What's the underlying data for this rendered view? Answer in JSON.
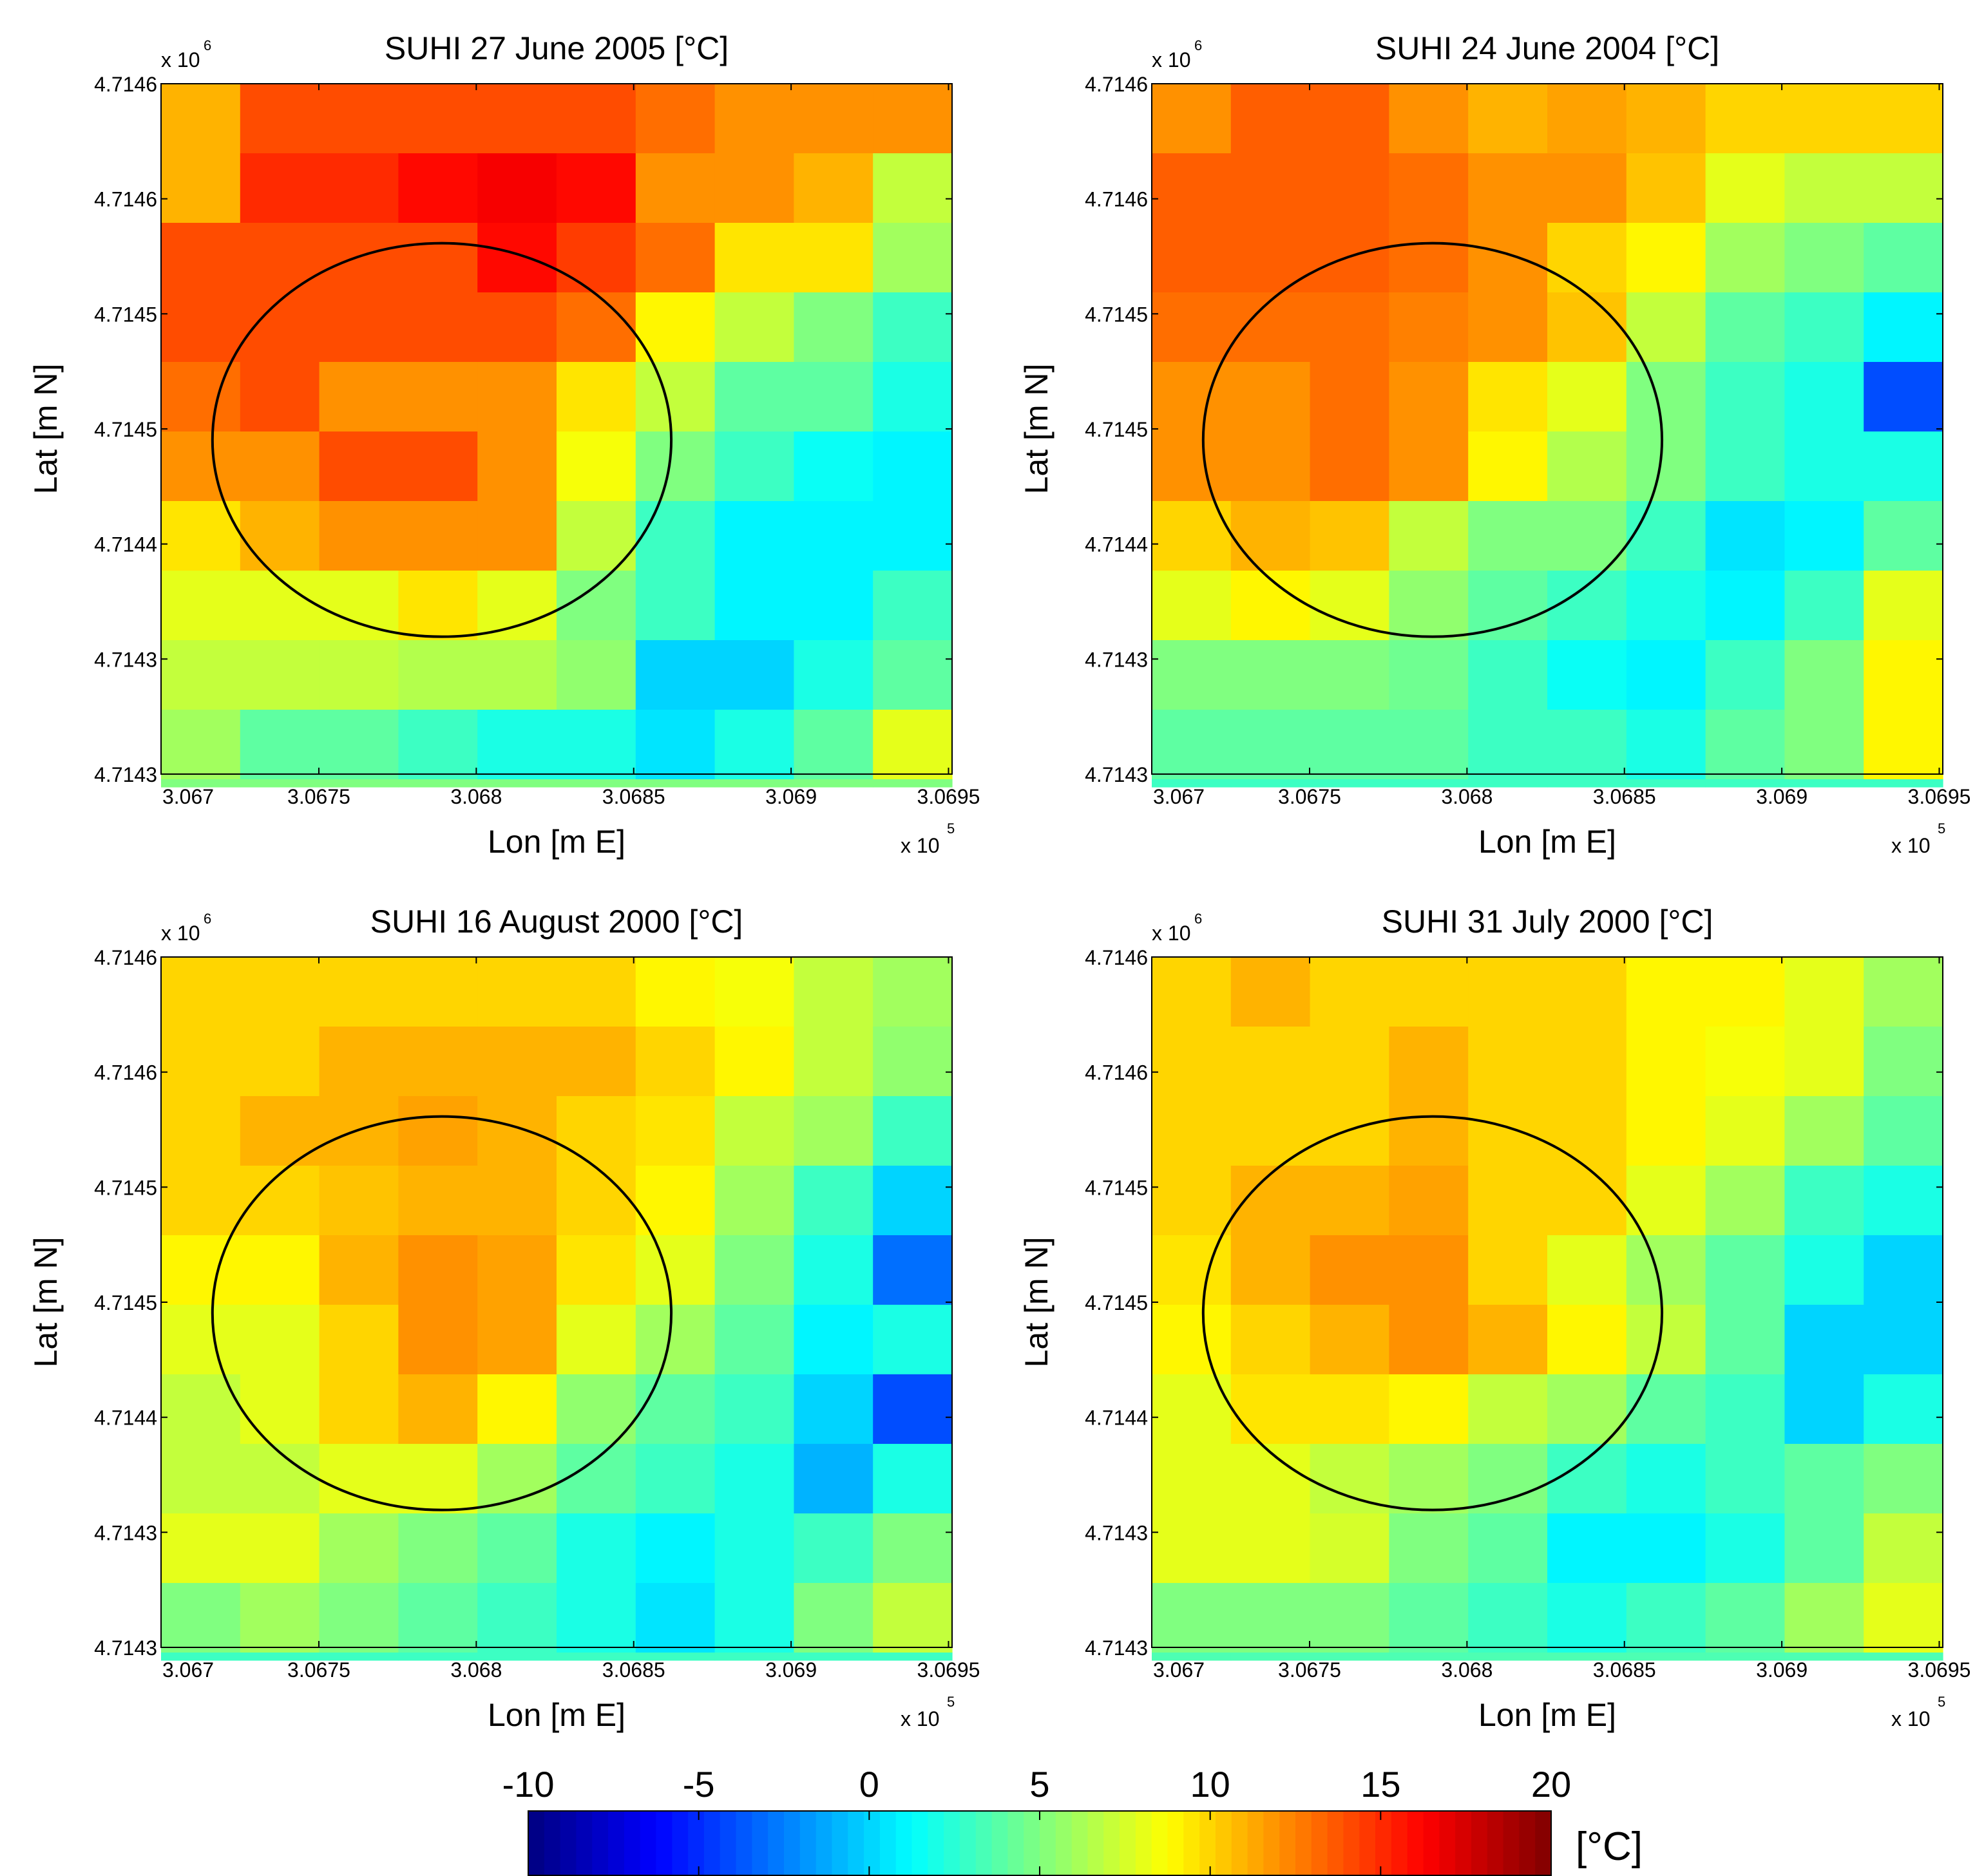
{
  "chart_data": {
    "type": "heatmap",
    "colorbar": {
      "min": -10,
      "max": 20,
      "ticks": [
        -10,
        -5,
        0,
        5,
        10,
        15,
        20
      ],
      "tick_labels": [
        "-10",
        "-5",
        "0",
        "5",
        "10",
        "15",
        "20"
      ],
      "unit_label": "[°C]",
      "colormap": "jet"
    },
    "panels": [
      {
        "title": "SUHI 27 June 2005 [°C]",
        "xlabel": "Lon [m E]",
        "ylabel": "Lat [m N]",
        "x_multiplier": "x 10",
        "x_multiplier_exp": "5",
        "y_multiplier": "x 10",
        "y_multiplier_exp": "6",
        "xtick_labels": [
          "3.067",
          "3.0675",
          "3.068",
          "3.0685",
          "3.069",
          "3.0695"
        ],
        "ytick_labels": [
          "4.7146",
          "4.7146",
          "4.7145",
          "4.7145",
          "4.7144",
          "4.7143",
          "4.7143"
        ],
        "grid_values": [
          [
            11,
            14,
            14,
            14,
            14,
            14,
            13,
            12,
            12,
            12
          ],
          [
            11,
            15,
            15,
            16,
            16.5,
            16,
            12,
            12,
            11,
            7
          ],
          [
            14,
            14,
            14,
            14,
            16,
            14.5,
            13,
            9.5,
            9.5,
            6
          ],
          [
            14,
            14,
            14,
            14,
            14,
            13,
            9,
            7,
            5,
            3
          ],
          [
            13,
            14,
            12,
            12,
            12,
            9.5,
            7,
            4,
            4,
            2
          ],
          [
            12,
            12,
            14,
            14,
            12,
            8.5,
            5,
            3,
            1.5,
            1
          ],
          [
            9.5,
            11,
            12,
            12,
            12,
            7,
            3,
            1,
            1,
            1
          ],
          [
            8,
            8,
            8,
            9.5,
            8,
            5,
            3,
            1,
            1,
            3
          ],
          [
            7,
            7,
            7,
            6.5,
            6.5,
            5.5,
            0,
            0,
            2,
            4
          ],
          [
            6,
            4,
            4,
            3,
            2,
            2,
            0.5,
            2,
            4,
            8
          ],
          [
            5,
            5,
            5,
            5,
            5,
            5,
            5,
            5,
            5,
            5
          ]
        ]
      },
      {
        "title": "SUHI 24 June 2004 [°C]",
        "xlabel": "Lon [m E]",
        "ylabel": "Lat [m N]",
        "x_multiplier": "x 10",
        "x_multiplier_exp": "5",
        "y_multiplier": "x 10",
        "y_multiplier_exp": "6",
        "xtick_labels": [
          "3.067",
          "3.0675",
          "3.068",
          "3.0685",
          "3.069",
          "3.0695"
        ],
        "ytick_labels": [
          "4.7146",
          "4.7146",
          "4.7145",
          "4.7145",
          "4.7144",
          "4.7143",
          "4.7143"
        ],
        "grid_values": [
          [
            12,
            13.5,
            13.5,
            12,
            11,
            11.5,
            11,
            10,
            10,
            10
          ],
          [
            13.5,
            13.5,
            13.5,
            13,
            12,
            12,
            10.5,
            8,
            7,
            7
          ],
          [
            13.5,
            13.5,
            13.5,
            13,
            12,
            10,
            9,
            6,
            5,
            4
          ],
          [
            13,
            13,
            13,
            12.5,
            12,
            10.5,
            7,
            4,
            3,
            1
          ],
          [
            12,
            12,
            13,
            12,
            9.5,
            8,
            5,
            3,
            2,
            -4
          ],
          [
            12,
            12,
            13,
            12,
            9,
            6.5,
            5,
            3,
            2,
            2
          ],
          [
            10,
            11,
            10.5,
            7,
            5,
            5,
            3,
            0.5,
            1,
            4
          ],
          [
            8,
            9,
            8,
            5.5,
            4,
            3,
            2,
            1,
            3,
            8
          ],
          [
            5,
            5,
            5,
            4.5,
            3,
            1.5,
            1,
            3,
            5,
            9
          ],
          [
            4,
            4,
            4,
            4,
            3,
            3,
            2,
            4,
            5,
            9
          ],
          [
            3,
            3,
            3,
            3,
            3,
            3,
            3,
            3,
            3,
            3
          ]
        ]
      },
      {
        "title": "SUHI 16 August 2000 [°C]",
        "xlabel": "Lon [m E]",
        "ylabel": "Lat [m N]",
        "x_multiplier": "x 10",
        "x_multiplier_exp": "5",
        "y_multiplier": "x 10",
        "y_multiplier_exp": "6",
        "xtick_labels": [
          "3.067",
          "3.0675",
          "3.068",
          "3.0685",
          "3.069",
          "3.0695"
        ],
        "ytick_labels": [
          "4.7146",
          "4.7146",
          "4.7145",
          "4.7145",
          "4.7144",
          "4.7143",
          "4.7143"
        ],
        "grid_values": [
          [
            10,
            10,
            10,
            10,
            10,
            10,
            9,
            8.5,
            7,
            6
          ],
          [
            10,
            10,
            11,
            11,
            11,
            11,
            10,
            9,
            7,
            5.5
          ],
          [
            10,
            11,
            11,
            11.5,
            11,
            10,
            9.5,
            7,
            6,
            3
          ],
          [
            10,
            10,
            10.5,
            11,
            11,
            10,
            9,
            6,
            3,
            0
          ],
          [
            9,
            9,
            11,
            12,
            11.5,
            9.5,
            8,
            5,
            2,
            -3
          ],
          [
            8,
            8,
            10,
            12,
            11.5,
            8,
            6,
            4,
            1,
            2
          ],
          [
            7,
            8,
            10,
            11,
            9,
            5.5,
            4,
            3,
            0,
            -4
          ],
          [
            7,
            7,
            8,
            8,
            6,
            4,
            3,
            2,
            -1,
            2
          ],
          [
            8,
            8,
            6,
            5,
            4,
            2,
            1,
            2,
            3,
            5
          ],
          [
            5,
            6,
            5,
            4,
            3,
            2,
            0.5,
            2,
            5,
            7
          ],
          [
            3,
            3,
            3,
            3,
            3,
            3,
            3,
            3,
            3,
            3
          ]
        ]
      },
      {
        "title": "SUHI 31 July 2000 [°C]",
        "xlabel": "Lon [m E]",
        "ylabel": "Lat [m N]",
        "x_multiplier": "x 10",
        "x_multiplier_exp": "5",
        "y_multiplier": "x 10",
        "y_multiplier_exp": "6",
        "xtick_labels": [
          "3.067",
          "3.0675",
          "3.068",
          "3.0685",
          "3.069",
          "3.0695"
        ],
        "ytick_labels": [
          "4.7146",
          "4.7146",
          "4.7145",
          "4.7145",
          "4.7144",
          "4.7143",
          "4.7143"
        ],
        "grid_values": [
          [
            10,
            11,
            10,
            10,
            10,
            10,
            9,
            9,
            8,
            6
          ],
          [
            10,
            10,
            10,
            11,
            10,
            10,
            9,
            8.5,
            8,
            5
          ],
          [
            10,
            10,
            10,
            11,
            10,
            10,
            9,
            8,
            6,
            4
          ],
          [
            10,
            11,
            11,
            11.5,
            10,
            10,
            8,
            6,
            3,
            2
          ],
          [
            9.5,
            11,
            12,
            12,
            10,
            8,
            6,
            4,
            2,
            0
          ],
          [
            9,
            10,
            11,
            12,
            11,
            9,
            7,
            4,
            0,
            0
          ],
          [
            8,
            9.5,
            9.5,
            9,
            7,
            6,
            4,
            3,
            0,
            2
          ],
          [
            8,
            8,
            7,
            6,
            5,
            3,
            2,
            3,
            4,
            5
          ],
          [
            8,
            8,
            7.5,
            5,
            4,
            1,
            1,
            2,
            4,
            7
          ],
          [
            5,
            5,
            5,
            4,
            3,
            2,
            3,
            4,
            6,
            8
          ],
          [
            3.5,
            3.5,
            3.5,
            3.5,
            3.5,
            3.5,
            3.5,
            3.5,
            3.5,
            3.5
          ]
        ]
      }
    ]
  }
}
